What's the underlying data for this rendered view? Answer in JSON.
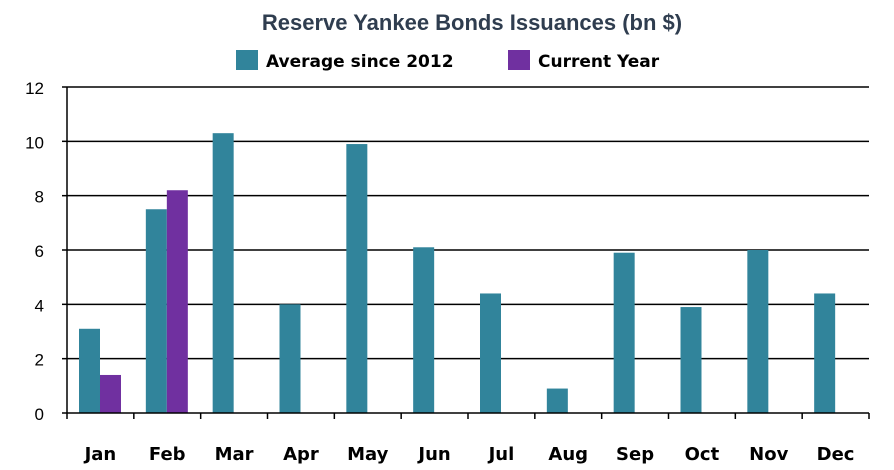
{
  "chart_data": {
    "type": "bar",
    "title": "Reserve Yankee Bonds Issuances (bn $)",
    "xlabel": "",
    "ylabel": "",
    "ylim": [
      0,
      12
    ],
    "yticks": [
      "0",
      "2",
      "4",
      "6",
      "8",
      "10",
      "12"
    ],
    "grid": true,
    "legend_position": "top",
    "categories": [
      "Jan",
      "Feb",
      "Mar",
      "Apr",
      "May",
      "Jun",
      "Jul",
      "Aug",
      "Sep",
      "Oct",
      "Nov",
      "Dec"
    ],
    "series": [
      {
        "name": "Average since 2012",
        "color": "#31849b",
        "values": [
          3.1,
          7.5,
          10.3,
          4.0,
          9.9,
          6.1,
          4.4,
          0.9,
          5.9,
          3.9,
          6.0,
          4.4
        ]
      },
      {
        "name": "Current Year",
        "color": "#7030a0",
        "values": [
          1.4,
          8.2,
          null,
          null,
          null,
          null,
          null,
          null,
          null,
          null,
          null,
          null
        ]
      }
    ]
  }
}
